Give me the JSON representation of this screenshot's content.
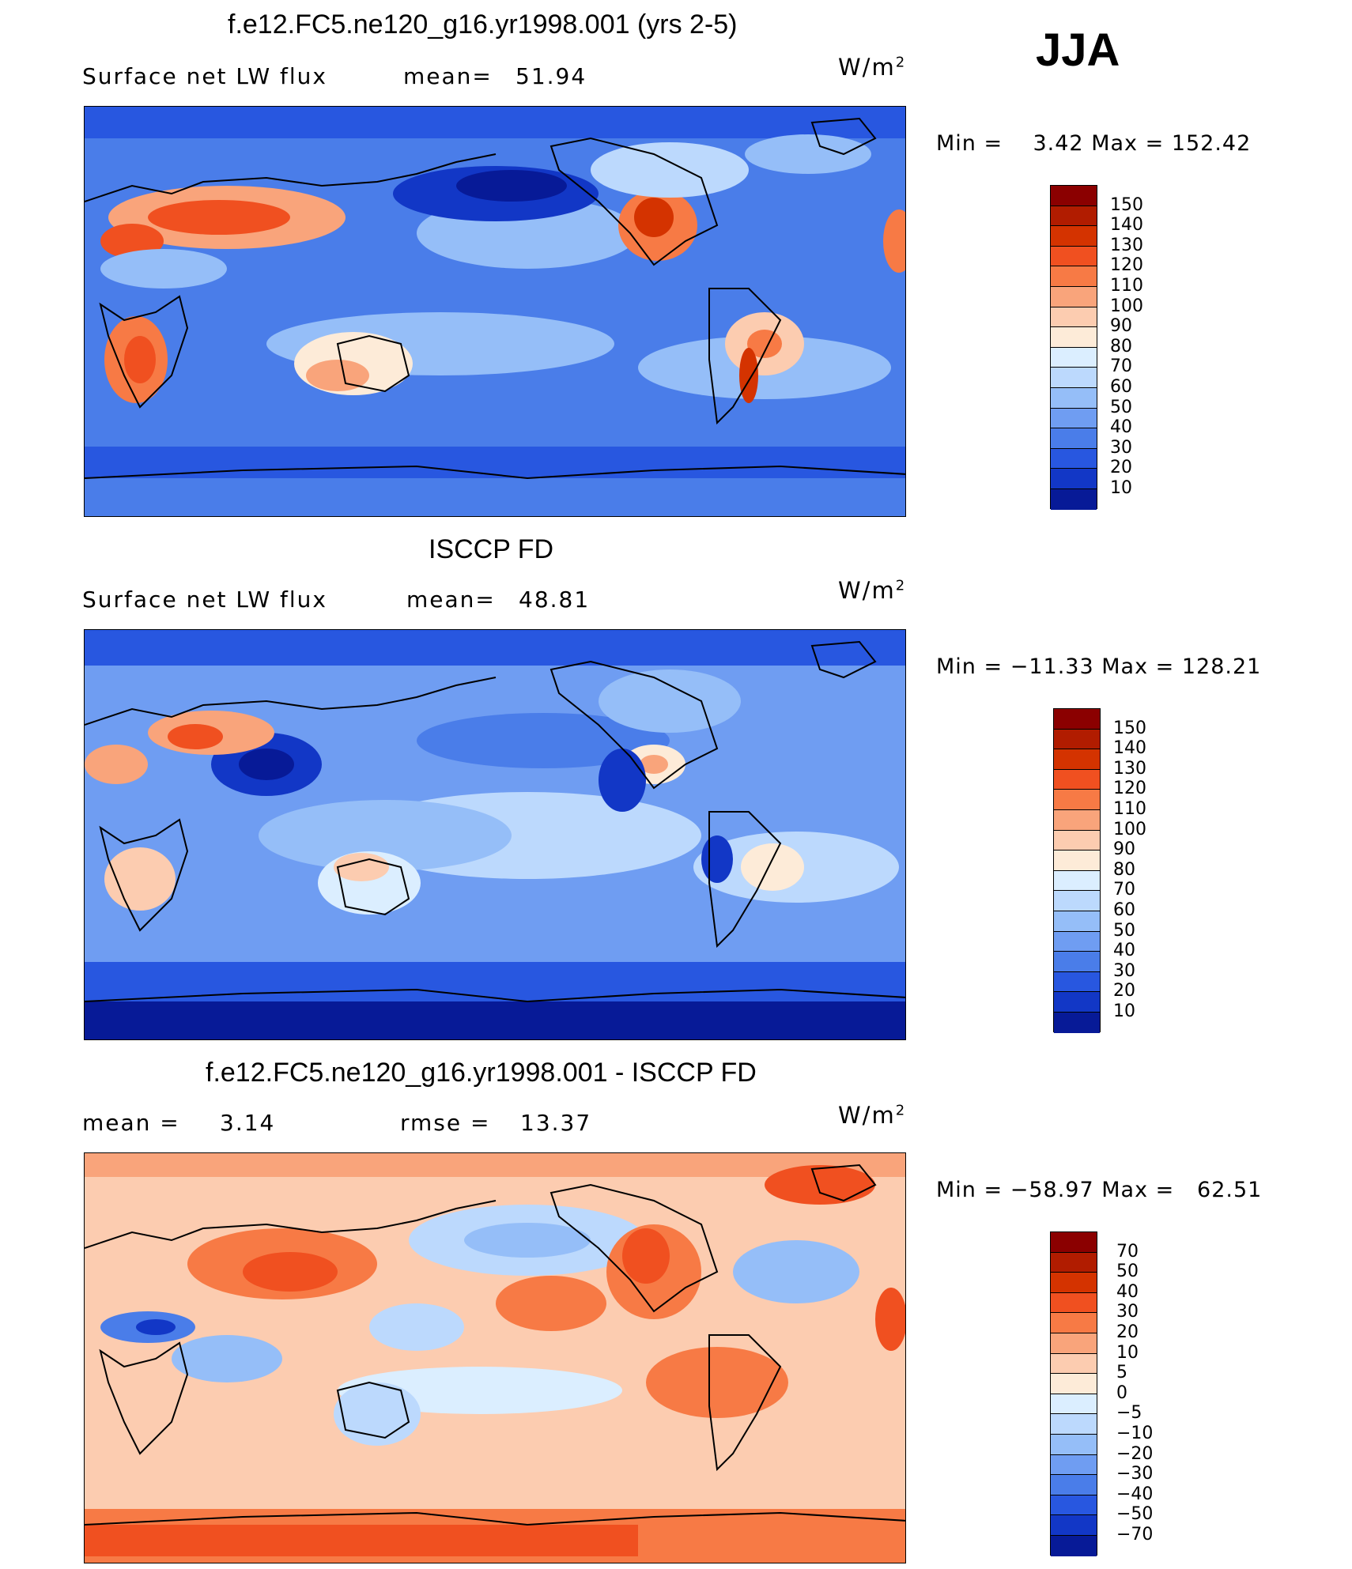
{
  "season": "JJA",
  "panels": [
    {
      "title": "f.e12.FC5.ne120_g16.yr1998.001 (yrs 2-5)",
      "left_label": "Surface net LW flux",
      "mid_label": "mean=",
      "mid_value": "51.94",
      "units": "W/m",
      "units_sup": "2",
      "min_text": "Min  =",
      "min_value": "3.42",
      "max_text": "Max  =",
      "max_value": "152.42",
      "colorbar_labels": [
        "150",
        "140",
        "130",
        "120",
        "110",
        "100",
        "90",
        "80",
        "70",
        "60",
        "50",
        "40",
        "30",
        "20",
        "10"
      ],
      "colorbar_colors": [
        "#8b0000",
        "#b11c00",
        "#d43300",
        "#f05020",
        "#f77a45",
        "#f9a47b",
        "#fcccb0",
        "#fdebd8",
        "#dbeeff",
        "#bcd9fd",
        "#95bef8",
        "#6f9df2",
        "#4a7de9",
        "#2857e0",
        "#1237c6",
        "#071a97"
      ]
    },
    {
      "title": "ISCCP FD",
      "left_label": "Surface net LW flux",
      "mid_label": "mean=",
      "mid_value": "48.81",
      "units": "W/m",
      "units_sup": "2",
      "min_text": "Min  =",
      "min_value": "−11.33",
      "max_text": "Max  =",
      "max_value": "128.21",
      "colorbar_labels": [
        "150",
        "140",
        "130",
        "120",
        "110",
        "100",
        "90",
        "80",
        "70",
        "60",
        "50",
        "40",
        "30",
        "20",
        "10"
      ],
      "colorbar_colors": [
        "#8b0000",
        "#b11c00",
        "#d43300",
        "#f05020",
        "#f77a45",
        "#f9a47b",
        "#fcccb0",
        "#fdebd8",
        "#dbeeff",
        "#bcd9fd",
        "#95bef8",
        "#6f9df2",
        "#4a7de9",
        "#2857e0",
        "#1237c6",
        "#071a97"
      ]
    },
    {
      "title": "f.e12.FC5.ne120_g16.yr1998.001 - ISCCP FD",
      "left_label": "mean  =",
      "left_value": "3.14",
      "mid_label": "rmse  =",
      "mid_value": "13.37",
      "units": "W/m",
      "units_sup": "2",
      "min_text": "Min  =",
      "min_value": "−58.97",
      "max_text": "Max  =",
      "max_value": "62.51",
      "colorbar_labels": [
        "70",
        "50",
        "40",
        "30",
        "20",
        "10",
        "5",
        "0",
        "−5",
        "−10",
        "−20",
        "−30",
        "−40",
        "−50",
        "−70"
      ],
      "colorbar_colors": [
        "#8b0000",
        "#b11c00",
        "#d43300",
        "#f05020",
        "#f77a45",
        "#f9a47b",
        "#fcccb0",
        "#fdebd8",
        "#dbeeff",
        "#bcd9fd",
        "#95bef8",
        "#6f9df2",
        "#4a7de9",
        "#2857e0",
        "#1237c6",
        "#071a97"
      ]
    }
  ]
}
